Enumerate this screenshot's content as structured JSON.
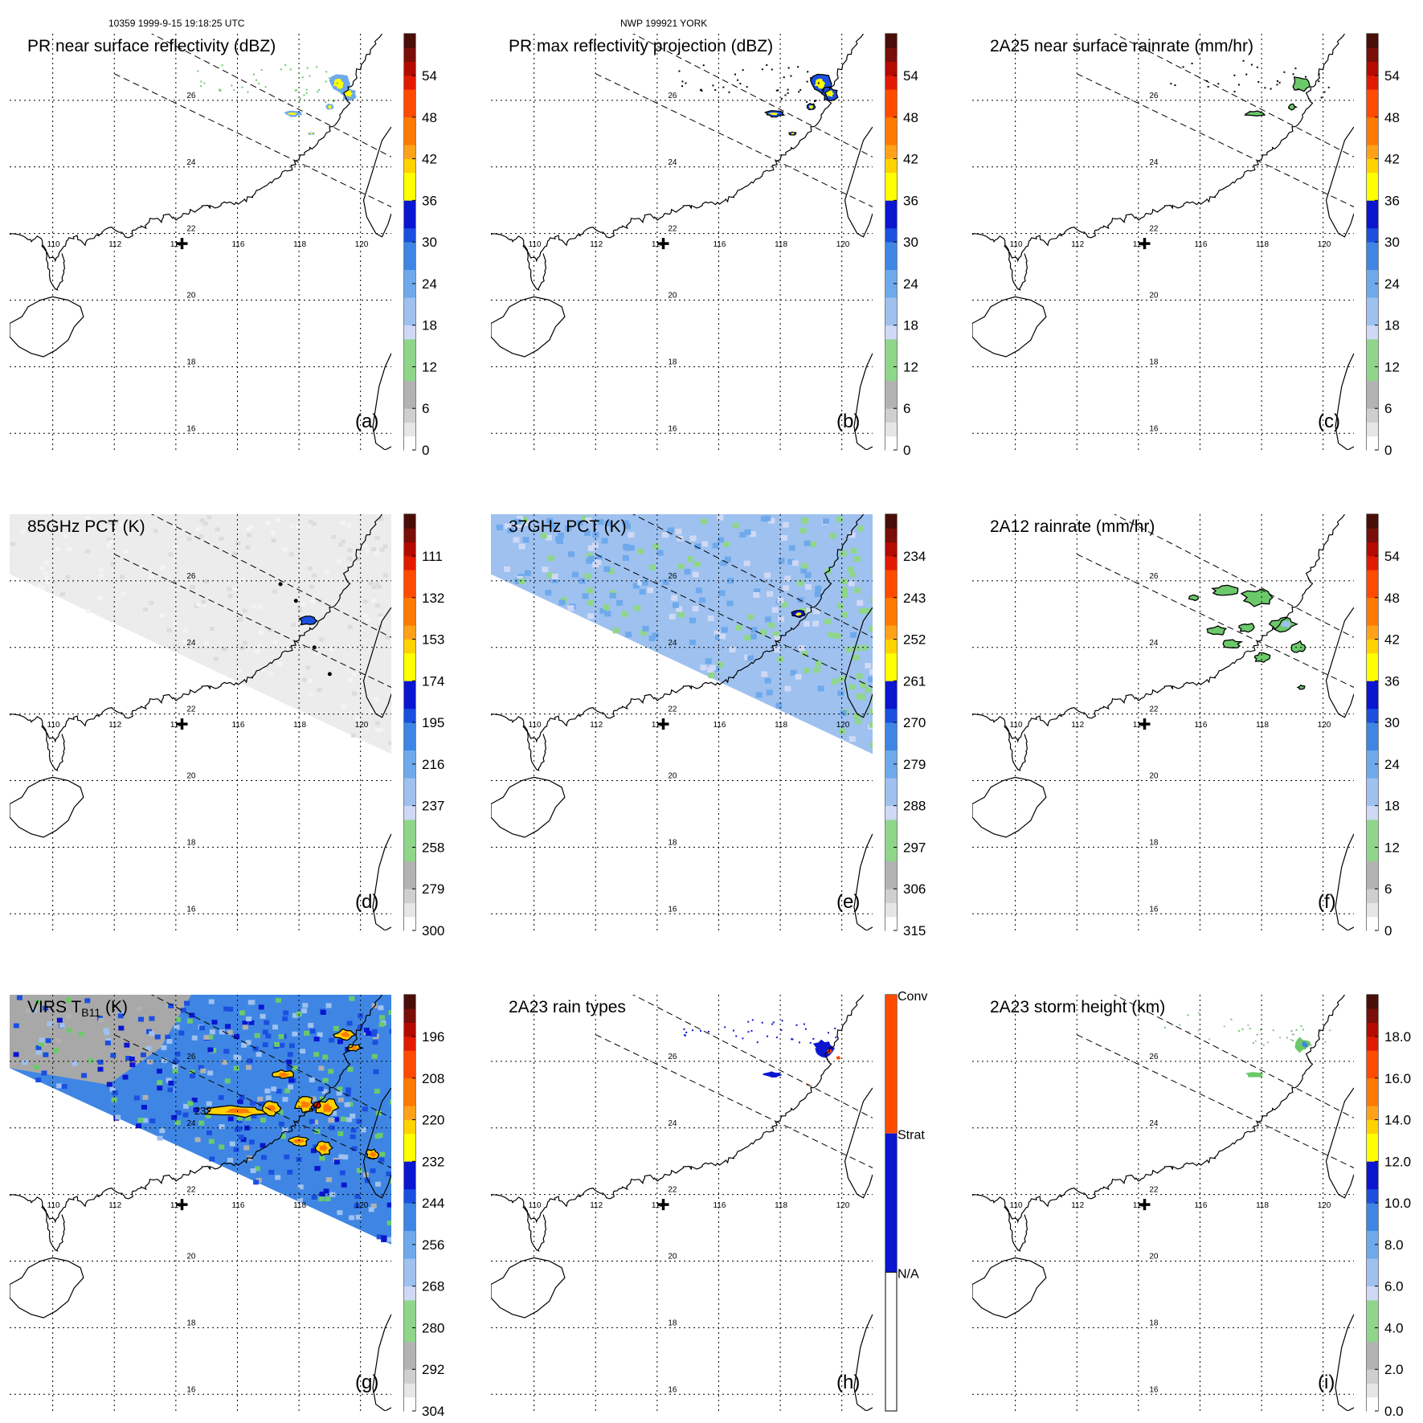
{
  "header": {
    "left": "10359 1999-9-15 19:18:25 UTC",
    "center": "NWP 199921 YORK"
  },
  "colors": {
    "palette": [
      "#ffffff",
      "#e6e6e6",
      "#cfcfcf",
      "#b3b3b3",
      "#a0a0a0",
      "#8fd68a",
      "#6cc96a",
      "#cfd9f5",
      "#9ec1ef",
      "#6ea9ec",
      "#3f86e4",
      "#1a4fe0",
      "#0a16d0",
      "#ffff00",
      "#ffd200",
      "#ffa21a",
      "#ff7a00",
      "#ff4b00",
      "#e21a00",
      "#b40a00",
      "#7a0e08",
      "#4a0e08"
    ],
    "land": "#000000",
    "grid": "#000000",
    "swath": "#000000",
    "rainStrat": "#0a16d0",
    "rainConv": "#ff4b00"
  },
  "legend": {
    "stormCenterMarker": "+"
  },
  "map": {
    "lon_labels": [
      "110",
      "112",
      "114",
      "116",
      "118",
      "120"
    ],
    "lat_labels": [
      "26",
      "24",
      "22",
      "20",
      "18",
      "16"
    ],
    "lon_range": [
      108.6,
      121.0
    ],
    "lat_range": [
      15.5,
      28.0
    ],
    "storm_center": {
      "lon": 114.2,
      "lat": 21.7
    }
  },
  "panels": [
    {
      "id": "a",
      "letter": "(a)",
      "title": "PR near surface reflectivity (dBZ)",
      "ticks": [
        "54",
        "48",
        "42",
        "36",
        "30",
        "24",
        "18",
        "12",
        "6",
        "0"
      ],
      "field": "pr"
    },
    {
      "id": "b",
      "letter": "(b)",
      "title": "PR max reflectivity projection (dBZ)",
      "ticks": [
        "54",
        "48",
        "42",
        "36",
        "30",
        "24",
        "18",
        "12",
        "6",
        "0"
      ],
      "field": "prmax"
    },
    {
      "id": "c",
      "letter": "(c)",
      "title": "2A25 near surface rainrate (mm/hr)",
      "ticks": [
        "54",
        "48",
        "42",
        "36",
        "30",
        "24",
        "18",
        "12",
        "6",
        "0"
      ],
      "field": "rr25"
    },
    {
      "id": "d",
      "letter": "(d)",
      "title": "85GHz PCT (K)",
      "ticks": [
        "111",
        "132",
        "153",
        "174",
        "195",
        "216",
        "237",
        "258",
        "279",
        "300"
      ],
      "field": "pct85"
    },
    {
      "id": "e",
      "letter": "(e)",
      "title": "37GHz PCT (K)",
      "ticks": [
        "234",
        "243",
        "252",
        "261",
        "270",
        "279",
        "288",
        "297",
        "306",
        "315"
      ],
      "field": "pct37"
    },
    {
      "id": "f",
      "letter": "(f)",
      "title": "2A12 rainrate (mm/hr)",
      "ticks": [
        "54",
        "48",
        "42",
        "36",
        "30",
        "24",
        "18",
        "12",
        "6",
        "0"
      ],
      "field": "rr12"
    },
    {
      "id": "g",
      "letter": "(g)",
      "title": "VIRS T",
      "title_sub": "B11",
      "title_tail": " (K)",
      "ticks": [
        "196",
        "208",
        "220",
        "232",
        "244",
        "256",
        "268",
        "280",
        "292",
        "304"
      ],
      "field": "virs",
      "extra_label": "232"
    },
    {
      "id": "h",
      "letter": "(h)",
      "title": "2A23 rain types",
      "ticks": [
        "Conv",
        "Strat",
        "N/A"
      ],
      "field": "types"
    },
    {
      "id": "i",
      "letter": "(i)",
      "title": "2A23 storm height (km)",
      "ticks": [
        "18.0",
        "16.0",
        "14.0",
        "12.0",
        "10.0",
        "8.0",
        "6.0",
        "4.0",
        "2.0",
        "0.0"
      ],
      "field": "height"
    }
  ]
}
